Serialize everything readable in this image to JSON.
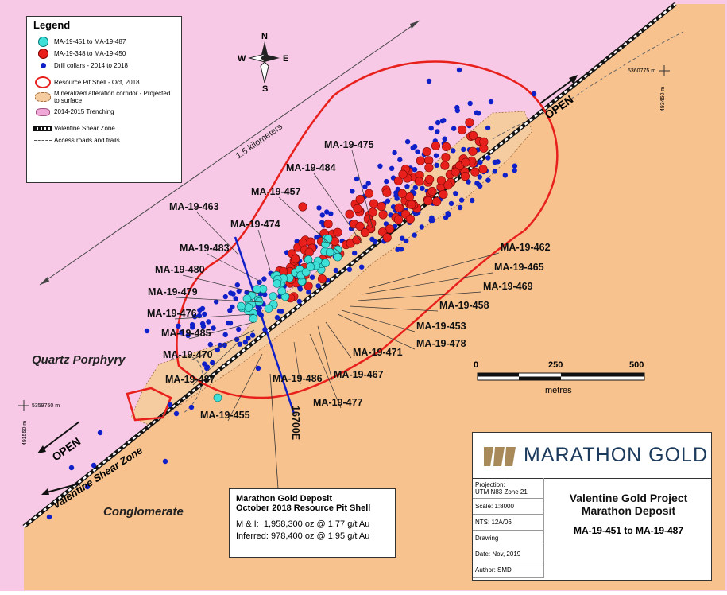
{
  "legend": {
    "title": "Legend",
    "items": [
      {
        "label": "MA-19-451 to MA-19-487",
        "color": "#3fe0d8"
      },
      {
        "label": "MA-19-348 to MA-19-450",
        "color": "#e8201c"
      },
      {
        "label": "Drill collars - 2014 to 2018",
        "color": "#1020c8"
      },
      {
        "label": "Resource Pit Shell - Oct, 2018",
        "color": "#e8201c"
      },
      {
        "label": "Mineralized alteration corridor - Projected to surface",
        "color": "#f5cba0"
      },
      {
        "label": "2014-2015 Trenching",
        "color": "#f0a8d8"
      },
      {
        "label": "Valentine Shear Zone",
        "color": "#111111"
      },
      {
        "label": "Access roads and trails",
        "color": "#555555"
      }
    ]
  },
  "compass": {
    "n": "N",
    "s": "S",
    "e": "E",
    "w": "W"
  },
  "distance_label": "1.5 kilometers",
  "hole_labels": [
    "MA-19-475",
    "MA-19-484",
    "MA-19-457",
    "MA-19-463",
    "MA-19-474",
    "MA-19-483",
    "MA-19-480",
    "MA-19-479",
    "MA-19-476",
    "MA-19-485",
    "MA-19-470",
    "MA-19-487",
    "MA-19-455",
    "MA-19-486",
    "MA-19-477",
    "MA-19-467",
    "MA-19-471",
    "MA-19-478",
    "MA-19-453",
    "MA-19-458",
    "MA-19-469",
    "MA-19-465",
    "MA-19-462"
  ],
  "open_labels": [
    "OPEN",
    "OPEN"
  ],
  "section_label": "16700E",
  "rock_units": [
    "Quartz Porphyry",
    "Conglomerate"
  ],
  "shear_zone_label": "Valentine Shear Zone",
  "grid_labels": [
    "5360775 m",
    "493450 m",
    "5359750 m",
    "491550 m"
  ],
  "scale_bar": {
    "ticks": [
      "0",
      "250",
      "500"
    ],
    "unit": "metres"
  },
  "deposit": {
    "title1": "Marathon Gold Deposit",
    "title2": "October 2018 Resource Pit Shell",
    "mi_label": "M & I:",
    "mi_value": "1,958,300 oz @ 1.77 g/t Au",
    "inf_label": "Inferred:",
    "inf_value": "978,400 oz @ 1.95 g/t Au"
  },
  "title_block": {
    "company": "MARATHON GOLD",
    "projection": "Projection:\nUTM N83 Zone 21",
    "scale": "Scale: 1:8000",
    "nts": "NTS: 12A/06",
    "drawing": "Drawing",
    "date": "Date: Nov, 2019",
    "author": "Author: SMD",
    "title1": "Valentine Gold Project",
    "title2": "Marathon Deposit",
    "title3": "MA-19-451 to MA-19-487"
  }
}
